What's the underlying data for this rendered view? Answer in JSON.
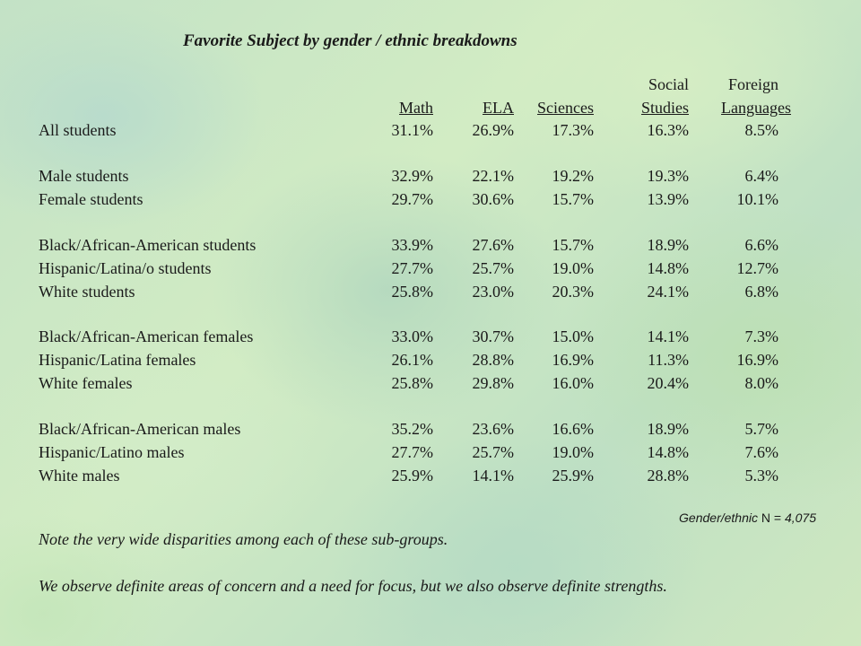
{
  "title": "Favorite Subject by gender / ethnic breakdowns",
  "columns": {
    "math": "Math",
    "ela": "ELA",
    "sciences": "Sciences",
    "social_top": "Social",
    "social_bottom": "Studies",
    "foreign_top": "Foreign",
    "foreign_bottom": "Languages"
  },
  "rows": [
    {
      "label": "All students",
      "values": [
        "31.1%",
        "26.9%",
        "17.3%",
        "16.3%",
        "8.5%"
      ]
    },
    {
      "label": "Male students",
      "values": [
        "32.9%",
        "22.1%",
        "19.2%",
        "19.3%",
        "6.4%"
      ]
    },
    {
      "label": "Female students",
      "values": [
        "29.7%",
        "30.6%",
        "15.7%",
        "13.9%",
        "10.1%"
      ]
    },
    {
      "label": "Black/African-American  students",
      "values": [
        "33.9%",
        "27.6%",
        "15.7%",
        "18.9%",
        "6.6%"
      ]
    },
    {
      "label": "Hispanic/Latina/o  students",
      "values": [
        "27.7%",
        "25.7%",
        "19.0%",
        "14.8%",
        "12.7%"
      ]
    },
    {
      "label": "White students",
      "values": [
        "25.8%",
        "23.0%",
        "20.3%",
        "24.1%",
        "6.8%"
      ]
    },
    {
      "label": "Black/African-American  females",
      "values": [
        "33.0%",
        "30.7%",
        "15.0%",
        "14.1%",
        "7.3%"
      ]
    },
    {
      "label": "Hispanic/Latina females",
      "values": [
        "26.1%",
        "28.8%",
        "16.9%",
        "11.3%",
        "16.9%"
      ]
    },
    {
      "label": "White females",
      "values": [
        "25.8%",
        "29.8%",
        "16.0%",
        "20.4%",
        "8.0%"
      ]
    },
    {
      "label": "Black/African-American  males",
      "values": [
        "35.2%",
        "23.6%",
        "16.6%",
        "18.9%",
        "5.7%"
      ]
    },
    {
      "label": "Hispanic/Latino males",
      "values": [
        "27.7%",
        "25.7%",
        "19.0%",
        "14.8%",
        "7.6%"
      ]
    },
    {
      "label": "White males",
      "values": [
        "25.9%",
        "14.1%",
        "25.9%",
        "28.8%",
        "5.3%"
      ]
    }
  ],
  "footnote": {
    "label": "Gender/ethnic",
    "n_text": " N = ",
    "n_value": "4,075"
  },
  "notes": [
    "Note the very wide disparities among each of these sub-groups.",
    "We observe definite areas of concern and a need for focus, but we also observe definite strengths."
  ]
}
